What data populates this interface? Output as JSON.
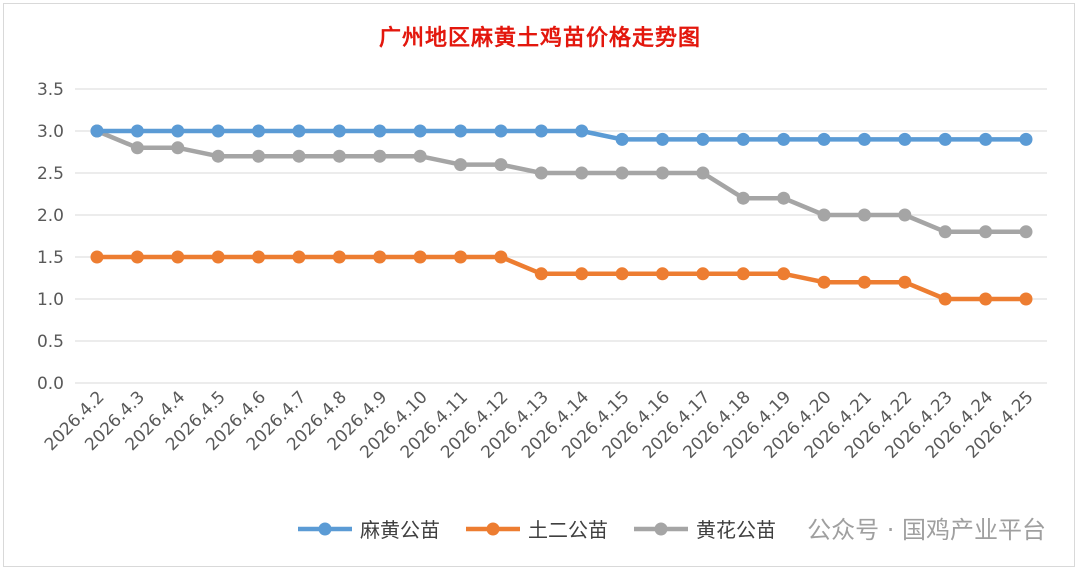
{
  "chart_data": {
    "type": "line",
    "title": "广州地区麻黄土鸡苗价格走势图",
    "categories": [
      "2026.4.2",
      "2026.4.3",
      "2026.4.4",
      "2026.4.5",
      "2026.4.6",
      "2026.4.7",
      "2026.4.8",
      "2026.4.9",
      "2026.4.10",
      "2026.4.11",
      "2026.4.12",
      "2026.4.13",
      "2026.4.14",
      "2026.4.15",
      "2026.4.16",
      "2026.4.17",
      "2026.4.18",
      "2026.4.19",
      "2026.4.20",
      "2026.4.21",
      "2026.4.22",
      "2026.4.23",
      "2026.4.24",
      "2026.4.25"
    ],
    "ylim": [
      0,
      3.5
    ],
    "yticks": [
      "0.0",
      "0.5",
      "1.0",
      "1.5",
      "2.0",
      "2.5",
      "3.0",
      "3.5"
    ],
    "grid": true,
    "legend_position": "bottom",
    "series": [
      {
        "name": "麻黄公苗",
        "color": "#5b9bd5",
        "values": [
          3.0,
          3.0,
          3.0,
          3.0,
          3.0,
          3.0,
          3.0,
          3.0,
          3.0,
          3.0,
          3.0,
          3.0,
          3.0,
          2.9,
          2.9,
          2.9,
          2.9,
          2.9,
          2.9,
          2.9,
          2.9,
          2.9,
          2.9,
          2.9
        ]
      },
      {
        "name": "土二公苗",
        "color": "#ed7d31",
        "values": [
          1.5,
          1.5,
          1.5,
          1.5,
          1.5,
          1.5,
          1.5,
          1.5,
          1.5,
          1.5,
          1.5,
          1.3,
          1.3,
          1.3,
          1.3,
          1.3,
          1.3,
          1.3,
          1.2,
          1.2,
          1.2,
          1.0,
          1.0,
          1.0
        ]
      },
      {
        "name": "黄花公苗",
        "color": "#a5a5a5",
        "values": [
          3.0,
          2.8,
          2.8,
          2.7,
          2.7,
          2.7,
          2.7,
          2.7,
          2.7,
          2.6,
          2.6,
          2.5,
          2.5,
          2.5,
          2.5,
          2.5,
          2.2,
          2.2,
          2.0,
          2.0,
          2.0,
          1.8,
          1.8,
          1.8
        ]
      }
    ]
  },
  "watermark": "公众号 · 国鸡产业平台"
}
